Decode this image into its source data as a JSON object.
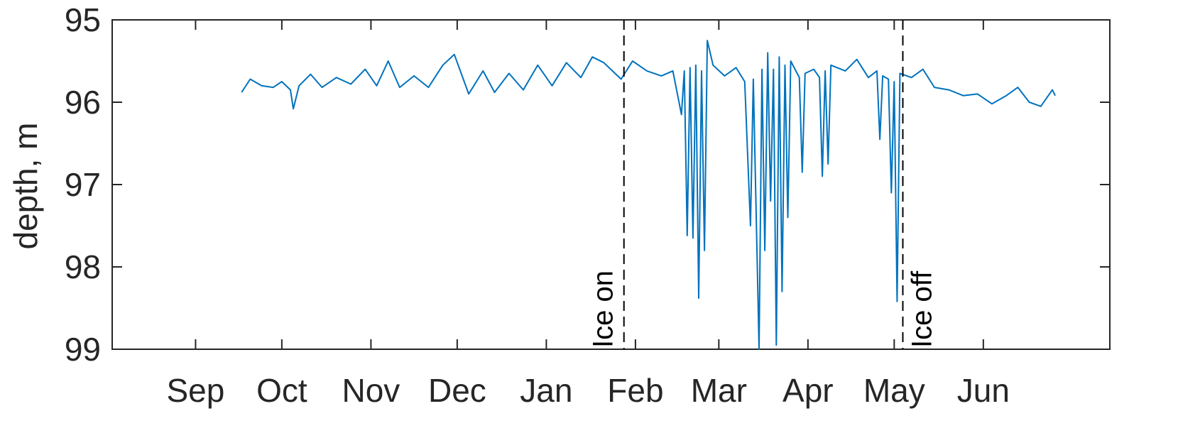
{
  "chart_data": {
    "type": "line",
    "title": "",
    "xlabel": "",
    "ylabel": "depth, m",
    "y_reversed": true,
    "ylim": [
      95,
      99
    ],
    "yticks": [
      95,
      96,
      97,
      98,
      99
    ],
    "xlim": [
      "2015-08-03",
      "2016-07-15"
    ],
    "xticks": [
      {
        "label": "Sep",
        "date": "2015-09-01"
      },
      {
        "label": "Oct",
        "date": "2015-10-01"
      },
      {
        "label": "Nov",
        "date": "2015-11-01"
      },
      {
        "label": "Dec",
        "date": "2015-12-01"
      },
      {
        "label": "Jan",
        "date": "2016-01-01"
      },
      {
        "label": "Feb",
        "date": "2016-02-01"
      },
      {
        "label": "Mar",
        "date": "2016-03-01"
      },
      {
        "label": "Apr",
        "date": "2016-04-01"
      },
      {
        "label": "May",
        "date": "2016-05-01"
      },
      {
        "label": "Jun",
        "date": "2016-06-01"
      }
    ],
    "grid": false,
    "legend": "none",
    "series": [
      {
        "color": "#0072BD",
        "points": [
          [
            "2015-09-17",
            95.88
          ],
          [
            "2015-09-20",
            95.72
          ],
          [
            "2015-09-24",
            95.8
          ],
          [
            "2015-09-28",
            95.82
          ],
          [
            "2015-10-01",
            95.75
          ],
          [
            "2015-10-04",
            95.85
          ],
          [
            "2015-10-05",
            96.08
          ],
          [
            "2015-10-07",
            95.8
          ],
          [
            "2015-10-11",
            95.66
          ],
          [
            "2015-10-15",
            95.82
          ],
          [
            "2015-10-20",
            95.7
          ],
          [
            "2015-10-25",
            95.78
          ],
          [
            "2015-10-30",
            95.6
          ],
          [
            "2015-11-03",
            95.8
          ],
          [
            "2015-11-07",
            95.5
          ],
          [
            "2015-11-11",
            95.82
          ],
          [
            "2015-11-16",
            95.68
          ],
          [
            "2015-11-21",
            95.82
          ],
          [
            "2015-11-26",
            95.55
          ],
          [
            "2015-11-30",
            95.42
          ],
          [
            "2015-12-05",
            95.9
          ],
          [
            "2015-12-10",
            95.62
          ],
          [
            "2015-12-14",
            95.88
          ],
          [
            "2015-12-19",
            95.65
          ],
          [
            "2015-12-24",
            95.85
          ],
          [
            "2015-12-29",
            95.55
          ],
          [
            "2016-01-03",
            95.8
          ],
          [
            "2016-01-08",
            95.52
          ],
          [
            "2016-01-13",
            95.7
          ],
          [
            "2016-01-17",
            95.45
          ],
          [
            "2016-01-21",
            95.52
          ],
          [
            "2016-01-24",
            95.62
          ],
          [
            "2016-01-27",
            95.72
          ],
          [
            "2016-01-31",
            95.5
          ],
          [
            "2016-02-05",
            95.62
          ],
          [
            "2016-02-10",
            95.68
          ],
          [
            "2016-02-14",
            95.62
          ],
          [
            "2016-02-17",
            96.15
          ],
          [
            "2016-02-18",
            95.62
          ],
          [
            "2016-02-19",
            97.62
          ],
          [
            "2016-02-20",
            95.58
          ],
          [
            "2016-02-21",
            97.65
          ],
          [
            "2016-02-22",
            95.55
          ],
          [
            "2016-02-23",
            98.38
          ],
          [
            "2016-02-24",
            95.62
          ],
          [
            "2016-02-25",
            97.8
          ],
          [
            "2016-02-26",
            95.25
          ],
          [
            "2016-02-28",
            95.55
          ],
          [
            "2016-03-03",
            95.68
          ],
          [
            "2016-03-07",
            95.58
          ],
          [
            "2016-03-10",
            95.75
          ],
          [
            "2016-03-12",
            97.5
          ],
          [
            "2016-03-13",
            95.72
          ],
          [
            "2016-03-15",
            99.0
          ],
          [
            "2016-03-16",
            95.6
          ],
          [
            "2016-03-17",
            97.8
          ],
          [
            "2016-03-18",
            95.4
          ],
          [
            "2016-03-19",
            97.2
          ],
          [
            "2016-03-20",
            95.6
          ],
          [
            "2016-03-21",
            98.95
          ],
          [
            "2016-03-22",
            95.45
          ],
          [
            "2016-03-23",
            98.3
          ],
          [
            "2016-03-24",
            95.55
          ],
          [
            "2016-03-25",
            97.4
          ],
          [
            "2016-03-26",
            95.5
          ],
          [
            "2016-03-29",
            95.7
          ],
          [
            "2016-03-30",
            96.85
          ],
          [
            "2016-03-31",
            95.65
          ],
          [
            "2016-04-03",
            95.6
          ],
          [
            "2016-04-05",
            95.7
          ],
          [
            "2016-04-06",
            96.9
          ],
          [
            "2016-04-07",
            95.62
          ],
          [
            "2016-04-08",
            96.75
          ],
          [
            "2016-04-09",
            95.55
          ],
          [
            "2016-04-14",
            95.62
          ],
          [
            "2016-04-18",
            95.48
          ],
          [
            "2016-04-22",
            95.7
          ],
          [
            "2016-04-25",
            95.62
          ],
          [
            "2016-04-26",
            96.45
          ],
          [
            "2016-04-27",
            95.68
          ],
          [
            "2016-04-29",
            95.72
          ],
          [
            "2016-04-30",
            97.1
          ],
          [
            "2016-05-01",
            95.75
          ],
          [
            "2016-05-02",
            98.42
          ],
          [
            "2016-05-03",
            95.65
          ],
          [
            "2016-05-07",
            95.7
          ],
          [
            "2016-05-11",
            95.6
          ],
          [
            "2016-05-15",
            95.82
          ],
          [
            "2016-05-20",
            95.85
          ],
          [
            "2016-05-25",
            95.92
          ],
          [
            "2016-05-30",
            95.9
          ],
          [
            "2016-06-04",
            96.02
          ],
          [
            "2016-06-09",
            95.92
          ],
          [
            "2016-06-13",
            95.82
          ],
          [
            "2016-06-17",
            96.0
          ],
          [
            "2016-06-21",
            96.05
          ],
          [
            "2016-06-25",
            95.85
          ],
          [
            "2016-06-26",
            95.92
          ]
        ]
      }
    ],
    "annotations": [
      {
        "text": "Ice on",
        "date": "2016-01-28",
        "style": "dashed-vertical-line"
      },
      {
        "text": "Ice off",
        "date": "2016-05-04",
        "style": "dashed-vertical-line"
      }
    ]
  }
}
